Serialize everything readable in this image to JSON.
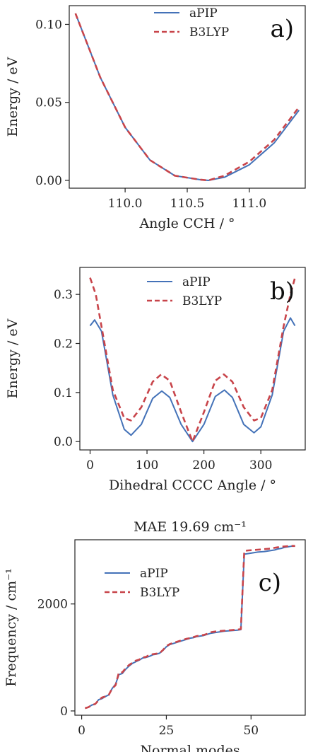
{
  "colors": {
    "aPIP": "#4472b8",
    "B3LYP": "#c8444a"
  },
  "chart_data": [
    {
      "type": "line",
      "panel": "a)",
      "title": "",
      "xlabel": "Angle CCH / °",
      "ylabel": "Energy / eV",
      "xlim": [
        109.55,
        111.45
      ],
      "ylim": [
        -0.005,
        0.112
      ],
      "xticks": [
        110.0,
        110.5,
        111.0
      ],
      "xtick_labels": [
        "110.0",
        "110.5",
        "111.0"
      ],
      "yticks": [
        0.0,
        0.05,
        0.1
      ],
      "ytick_labels": [
        "0.00",
        "0.05",
        "0.10"
      ],
      "legend_position": "top-center",
      "series": [
        {
          "name": "aPIP",
          "style": "solid",
          "x": [
            109.6,
            109.8,
            110.0,
            110.2,
            110.4,
            110.6,
            110.67,
            110.8,
            111.0,
            111.2,
            111.4
          ],
          "y": [
            0.107,
            0.066,
            0.034,
            0.013,
            0.003,
            0.0005,
            0.0,
            0.002,
            0.01,
            0.024,
            0.045
          ]
        },
        {
          "name": "B3LYP",
          "style": "dashed",
          "x": [
            109.6,
            109.8,
            110.0,
            110.2,
            110.4,
            110.6,
            110.67,
            110.8,
            111.0,
            111.2,
            111.4
          ],
          "y": [
            0.107,
            0.066,
            0.034,
            0.013,
            0.003,
            0.0005,
            0.0,
            0.003,
            0.012,
            0.026,
            0.047
          ]
        }
      ]
    },
    {
      "type": "line",
      "panel": "b)",
      "title": "",
      "xlabel": "Dihedral CCCC Angle / °",
      "ylabel": "Energy / eV",
      "xlim": [
        -18,
        378
      ],
      "ylim": [
        -0.017,
        0.355
      ],
      "xticks": [
        0,
        100,
        200,
        300
      ],
      "xtick_labels": [
        "0",
        "100",
        "200",
        "300"
      ],
      "yticks": [
        0.0,
        0.1,
        0.2,
        0.3
      ],
      "ytick_labels": [
        "0.0",
        "0.1",
        "0.2",
        "0.3"
      ],
      "legend_position": "top-center",
      "series": [
        {
          "name": "aPIP",
          "style": "solid",
          "x": [
            0,
            8,
            20,
            40,
            60,
            72,
            90,
            110,
            126,
            140,
            160,
            180,
            200,
            220,
            236,
            250,
            270,
            288,
            300,
            320,
            340,
            352,
            360
          ],
          "y": [
            0.236,
            0.248,
            0.225,
            0.095,
            0.025,
            0.013,
            0.035,
            0.088,
            0.103,
            0.09,
            0.035,
            0.0,
            0.035,
            0.092,
            0.105,
            0.09,
            0.035,
            0.018,
            0.03,
            0.095,
            0.225,
            0.252,
            0.236
          ]
        },
        {
          "name": "B3LYP",
          "style": "dashed",
          "x": [
            0,
            10,
            20,
            40,
            60,
            72,
            90,
            110,
            125,
            140,
            160,
            180,
            200,
            220,
            235,
            250,
            270,
            288,
            300,
            320,
            340,
            352,
            360
          ],
          "y": [
            0.334,
            0.3,
            0.235,
            0.105,
            0.048,
            0.043,
            0.07,
            0.122,
            0.137,
            0.124,
            0.06,
            0.0,
            0.06,
            0.124,
            0.137,
            0.122,
            0.07,
            0.043,
            0.048,
            0.105,
            0.235,
            0.3,
            0.334
          ]
        }
      ]
    },
    {
      "type": "line",
      "panel": "c)",
      "title": "MAE 19.69 cm⁻¹",
      "xlabel": "Normal modes",
      "ylabel": "Frequency / cm⁻¹",
      "xlim": [
        -2,
        66
      ],
      "ylim": [
        -80,
        3200
      ],
      "xticks": [
        0,
        25,
        50
      ],
      "xtick_labels": [
        "0",
        "25",
        "50"
      ],
      "yticks": [
        0,
        2000
      ],
      "ytick_labels": [
        "0",
        "2000"
      ],
      "legend_position": "upper-left",
      "series": [
        {
          "name": "aPIP",
          "style": "solid",
          "x": [
            1,
            2,
            3,
            4,
            5,
            6,
            7,
            8,
            9,
            10,
            11,
            12,
            13,
            14,
            15,
            16,
            17,
            18,
            19,
            20,
            21,
            22,
            23,
            24,
            25,
            26,
            27,
            28,
            29,
            30,
            31,
            32,
            33,
            34,
            35,
            36,
            37,
            38,
            39,
            40,
            41,
            42,
            43,
            44,
            45,
            46,
            47,
            48,
            49,
            50,
            51,
            52,
            53,
            54,
            55,
            56,
            57,
            58,
            59,
            60,
            61,
            62,
            63
          ],
          "y": [
            50,
            70,
            110,
            130,
            210,
            230,
            270,
            300,
            420,
            500,
            680,
            700,
            780,
            840,
            890,
            920,
            950,
            990,
            1000,
            1020,
            1050,
            1060,
            1080,
            1130,
            1200,
            1240,
            1260,
            1280,
            1300,
            1320,
            1340,
            1360,
            1370,
            1390,
            1400,
            1410,
            1430,
            1450,
            1460,
            1470,
            1480,
            1490,
            1495,
            1500,
            1505,
            1510,
            1520,
            2930,
            2940,
            2950,
            2960,
            2970,
            2975,
            2980,
            2990,
            3000,
            3010,
            3030,
            3040,
            3060,
            3070,
            3080,
            3080
          ]
        },
        {
          "name": "B3LYP",
          "style": "dashed",
          "x": [
            1,
            2,
            3,
            4,
            5,
            6,
            7,
            8,
            9,
            10,
            11,
            12,
            13,
            14,
            15,
            16,
            17,
            18,
            19,
            20,
            21,
            22,
            23,
            24,
            25,
            26,
            27,
            28,
            29,
            30,
            31,
            32,
            33,
            34,
            35,
            36,
            37,
            38,
            39,
            40,
            41,
            42,
            43,
            44,
            45,
            46,
            47,
            48,
            49,
            50,
            51,
            52,
            53,
            54,
            55,
            56,
            57,
            58,
            59,
            60,
            61,
            62,
            63
          ],
          "y": [
            50,
            70,
            110,
            130,
            200,
            250,
            270,
            300,
            420,
            480,
            720,
            720,
            800,
            860,
            900,
            940,
            960,
            1000,
            1010,
            1050,
            1060,
            1070,
            1080,
            1140,
            1210,
            1250,
            1270,
            1290,
            1310,
            1330,
            1350,
            1360,
            1380,
            1400,
            1410,
            1420,
            1440,
            1470,
            1480,
            1490,
            1495,
            1500,
            1505,
            1510,
            1515,
            1520,
            1530,
            2990,
            3000,
            3005,
            3010,
            3015,
            3020,
            3025,
            3030,
            3040,
            3050,
            3060,
            3070,
            3075,
            3080,
            3085,
            3085
          ]
        }
      ]
    }
  ]
}
